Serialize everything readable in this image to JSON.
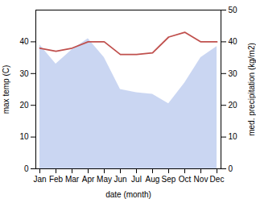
{
  "chart_data": {
    "type": "line",
    "categories": [
      "Jan",
      "Feb",
      "Mar",
      "Apr",
      "May",
      "Jun",
      "Jul",
      "Aug",
      "Sep",
      "Oct",
      "Nov",
      "Dec"
    ],
    "xlabel": "date (month)",
    "ylabel": "max temp (C)",
    "y2label": "med. precipitation (kg/m2)",
    "ylim": [
      0,
      50
    ],
    "yticks": [
      0,
      10,
      20,
      30,
      40
    ],
    "y2lim": [
      0,
      50
    ],
    "y2ticks": [
      0,
      10,
      20,
      30,
      40,
      50
    ],
    "series": [
      {
        "type": "area",
        "color": "#b8c8ed",
        "values": [
          39,
          33,
          37.5,
          41,
          35,
          25,
          24,
          23.5,
          20.5,
          27,
          35,
          38.5
        ]
      },
      {
        "type": "line",
        "color": "#c0504d",
        "axis": "y2",
        "values": [
          38,
          37,
          38,
          40,
          40,
          36,
          36,
          36.5,
          41.5,
          43,
          40,
          40
        ]
      }
    ]
  }
}
